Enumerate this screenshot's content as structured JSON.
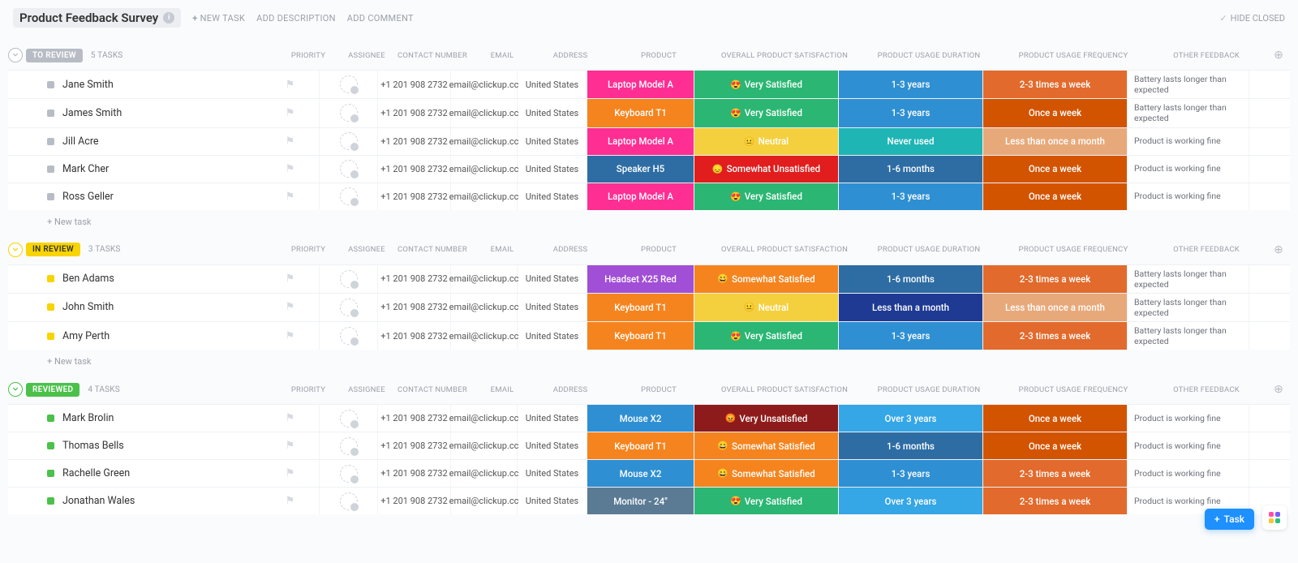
{
  "header": {
    "title": "Product Feedback Survey",
    "actions": {
      "new_task": "NEW TASK",
      "add_description": "ADD DESCRIPTION",
      "add_comment": "ADD COMMENT"
    },
    "hide_closed": "HIDE CLOSED"
  },
  "columns": {
    "priority": "PRIORITY",
    "assignee": "ASSIGNEE",
    "contact": "CONTACT NUMBER",
    "email": "EMAIL",
    "address": "ADDRESS",
    "product": "PRODUCT",
    "satisfaction": "OVERALL PRODUCT SATISFACTION",
    "duration": "PRODUCT USAGE DURATION",
    "frequency": "PRODUCT USAGE FREQUENCY",
    "feedback": "OTHER FEEDBACK"
  },
  "defaults": {
    "contact": "+1 201 908 2732",
    "email": "email@clickup.cc",
    "address": "United States"
  },
  "new_task_label": "+ New task",
  "fab": {
    "label": "Task"
  },
  "app_dots": [
    "#ff4fa7",
    "#7b5cff",
    "#ffc233",
    "#26c281"
  ],
  "colors": {
    "product": {
      "Laptop Model A": "#ff2e93",
      "Keyboard T1": "#f5841f",
      "Speaker H5": "#2e6da4",
      "Headset X25 Red": "#a14fd6",
      "Mouse X2": "#2f8fd3",
      "Monitor - 24\"": "#5b7b95"
    },
    "satisfaction": {
      "Very Satisfied": {
        "bg": "#2bb673",
        "emoji": "😍"
      },
      "Somewhat Satisfied": {
        "bg": "#f5841f",
        "emoji": "😄"
      },
      "Neutral": {
        "bg": "#f4d03f",
        "emoji": "😐"
      },
      "Somewhat Unsatisfied": {
        "bg": "#e11d1d",
        "emoji": "😞"
      },
      "Very Unsatisfied": {
        "bg": "#8e1b1b",
        "emoji": "😡"
      }
    },
    "duration": {
      "1-3 years": "#2f8fd3",
      "Never used": "#1fb5b5",
      "1-6 months": "#2e6da4",
      "Less than a month": "#1f3a93",
      "Over 3 years": "#35a6e6"
    },
    "frequency": {
      "2-3 times a week": "#e26a2c",
      "Once a week": "#d35400",
      "Less than once a month": "#e8a97a"
    }
  },
  "groups": [
    {
      "id": "to-review",
      "label": "TO REVIEW",
      "count_label": "5 TASKS",
      "pill_bg": "#b7bcc5",
      "toggle_color": "#b7bcc5",
      "square": "#b7bcc5",
      "rows": [
        {
          "name": "Jane Smith",
          "product": "Laptop Model A",
          "satisfaction": "Very Satisfied",
          "duration": "1-3 years",
          "frequency": "2-3 times a week",
          "feedback": "Battery lasts longer than expected"
        },
        {
          "name": "James Smith",
          "product": "Keyboard T1",
          "satisfaction": "Very Satisfied",
          "duration": "1-3 years",
          "frequency": "Once a week",
          "feedback": "Battery lasts longer than expected"
        },
        {
          "name": "Jill Acre",
          "product": "Laptop Model A",
          "satisfaction": "Neutral",
          "duration": "Never used",
          "frequency": "Less than once a month",
          "feedback": "Product is working fine"
        },
        {
          "name": "Mark Cher",
          "product": "Speaker H5",
          "satisfaction": "Somewhat Unsatisfied",
          "duration": "1-6 months",
          "frequency": "Once a week",
          "feedback": "Product is working fine"
        },
        {
          "name": "Ross Geller",
          "product": "Laptop Model A",
          "satisfaction": "Very Satisfied",
          "duration": "1-3 years",
          "frequency": "Once a week",
          "feedback": "Product is working fine"
        }
      ]
    },
    {
      "id": "in-review",
      "label": "IN REVIEW",
      "count_label": "3 TASKS",
      "pill_bg": "#f8d400",
      "toggle_color": "#f8d400",
      "square": "#f8d400",
      "pill_text": "#333",
      "rows": [
        {
          "name": "Ben Adams",
          "product": "Headset X25 Red",
          "satisfaction": "Somewhat Satisfied",
          "duration": "1-6 months",
          "frequency": "2-3 times a week",
          "feedback": "Battery lasts longer than expected"
        },
        {
          "name": "John Smith",
          "product": "Keyboard T1",
          "satisfaction": "Neutral",
          "duration": "Less than a month",
          "frequency": "Less than once a month",
          "feedback": "Battery lasts longer than expected"
        },
        {
          "name": "Amy Perth",
          "product": "Keyboard T1",
          "satisfaction": "Very Satisfied",
          "duration": "1-3 years",
          "frequency": "2-3 times a week",
          "feedback": "Battery lasts longer than expected"
        }
      ]
    },
    {
      "id": "reviewed",
      "label": "REVIEWED",
      "count_label": "4 TASKS",
      "pill_bg": "#4bc14b",
      "toggle_color": "#4bc14b",
      "square": "#4bc14b",
      "rows": [
        {
          "name": "Mark Brolin",
          "product": "Mouse X2",
          "satisfaction": "Very Unsatisfied",
          "duration": "Over 3 years",
          "frequency": "Once a week",
          "feedback": "Product is working fine"
        },
        {
          "name": "Thomas Bells",
          "product": "Keyboard T1",
          "satisfaction": "Somewhat Satisfied",
          "duration": "1-6 months",
          "frequency": "Once a week",
          "feedback": "Product is working fine"
        },
        {
          "name": "Rachelle Green",
          "product": "Mouse X2",
          "satisfaction": "Somewhat Satisfied",
          "duration": "1-3 years",
          "frequency": "2-3 times a week",
          "feedback": "Product is working fine"
        },
        {
          "name": "Jonathan Wales",
          "product": "Monitor - 24\"",
          "satisfaction": "Very Satisfied",
          "duration": "Over 3 years",
          "frequency": "2-3 times a week",
          "feedback": "Product is working fine"
        }
      ]
    }
  ]
}
